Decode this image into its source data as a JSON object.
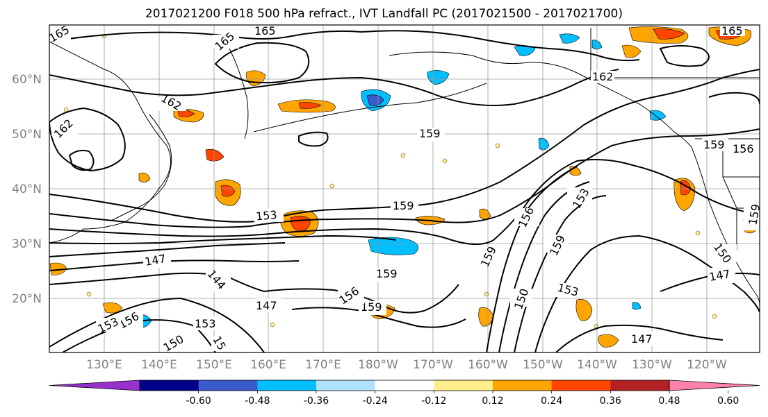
{
  "title": "2017021200 F018 500 hPa refract., IVT Landfall PC (2017021500 - 2017021700)",
  "lat_labels": [
    "60°N",
    "50°N",
    "40°N",
    "30°N",
    "20°N"
  ],
  "lon_labels": [
    "130°E",
    "140°E",
    "150°E",
    "160°E",
    "170°E",
    "180°W",
    "170°W",
    "160°W",
    "150°W",
    "140°W",
    "130°W",
    "120°W"
  ],
  "colorbar": {
    "colors": [
      "#9932cc",
      "#00008b",
      "#3a5bcc",
      "#00bfff",
      "#b0e2ff",
      "#ffffff",
      "#ffee8a",
      "#ffa500",
      "#ff4500",
      "#b22222",
      "#ff82ab"
    ],
    "tick_labels": [
      "-0.60",
      "-0.48",
      "-0.36",
      "-0.24",
      "-0.12",
      "0.12",
      "0.24",
      "0.36",
      "0.48",
      "0.60"
    ]
  },
  "contour_labels": [
    "165",
    "165",
    "165",
    "165",
    "162",
    "162",
    "162",
    "159",
    "159",
    "159",
    "159",
    "159",
    "159",
    "159",
    "156",
    "156",
    "156",
    "156",
    "153",
    "153",
    "153",
    "153",
    "153",
    "150",
    "150",
    "150",
    "147",
    "147",
    "147",
    "147",
    "144",
    "15",
    "159"
  ]
}
